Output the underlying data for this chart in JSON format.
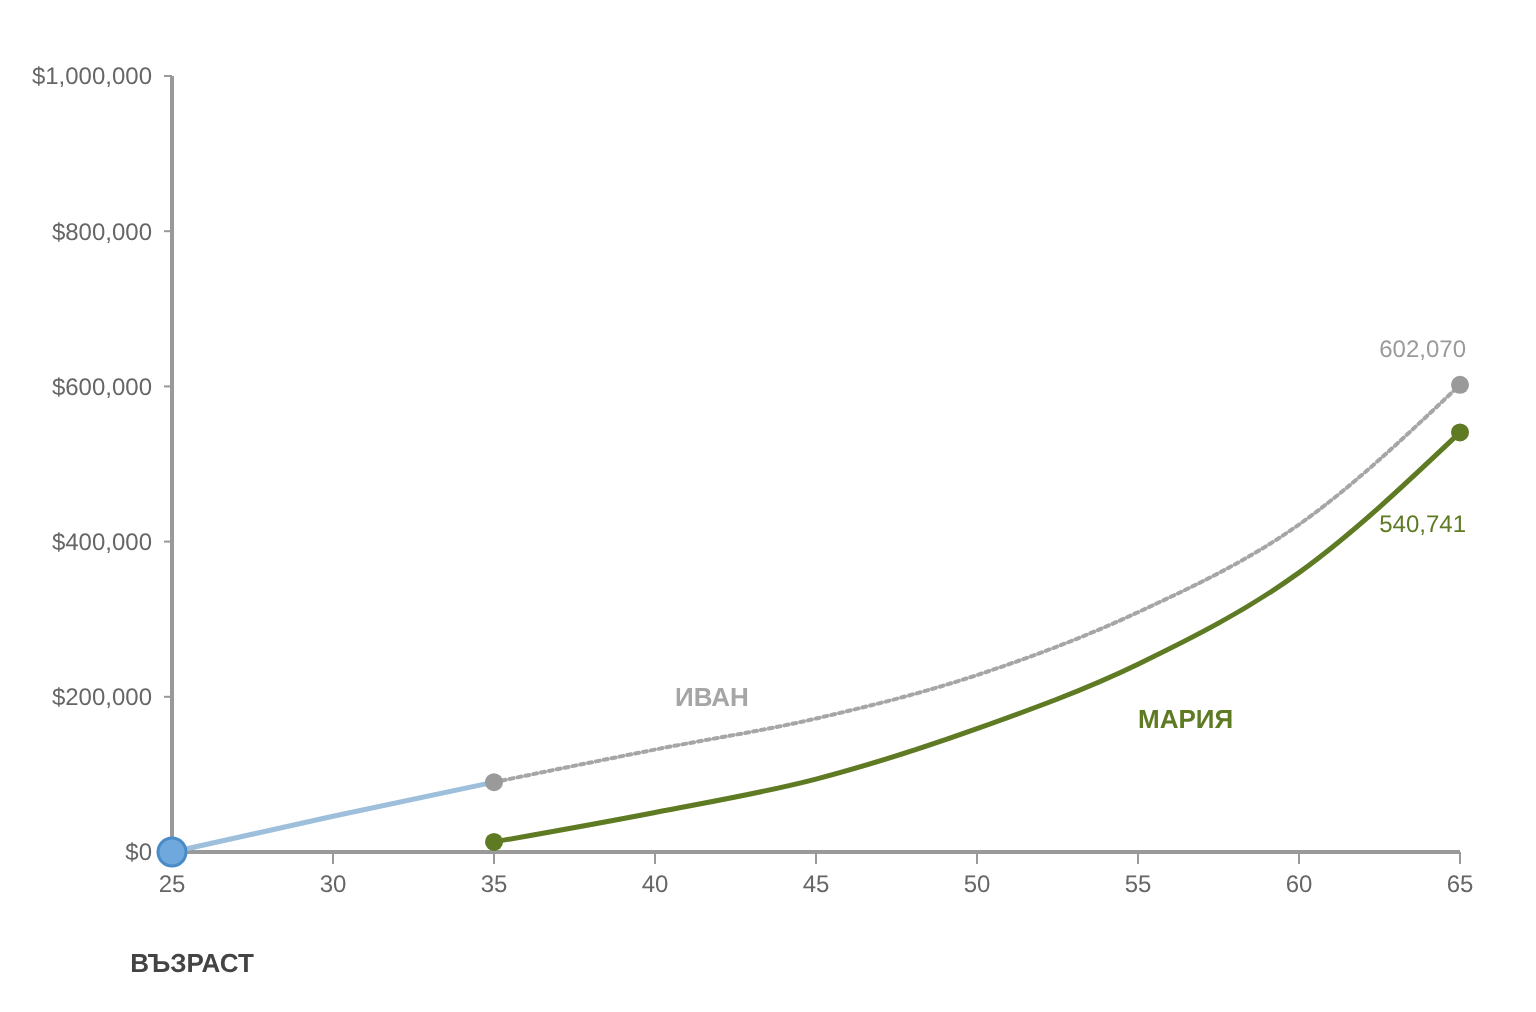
{
  "chart_data": {
    "type": "line",
    "xlabel": "ВЪЗРАСТ",
    "xlim": [
      25,
      65
    ],
    "xticks": [
      25,
      30,
      35,
      40,
      45,
      50,
      55,
      60,
      65
    ],
    "ylim": [
      0,
      1000000
    ],
    "yticks": [
      {
        "value": 0,
        "label": "$0"
      },
      {
        "value": 200000,
        "label": "$200,000"
      },
      {
        "value": 400000,
        "label": "$400,000"
      },
      {
        "value": 600000,
        "label": "$600,000"
      },
      {
        "value": 800000,
        "label": "$800,000"
      },
      {
        "value": 1000000,
        "label": "$1,000,000"
      }
    ],
    "grid": false,
    "legend": false,
    "series": [
      {
        "color": "#9dbfdc",
        "line_style": "solid",
        "x": [
          25,
          30,
          35
        ],
        "values": [
          0,
          46000,
          90000
        ]
      },
      {
        "name": "ИВАН",
        "color": "#a6a6a6",
        "line_style": "dotted",
        "x": [
          35,
          40,
          45,
          50,
          55,
          60,
          65
        ],
        "values": [
          90000,
          132000,
          172000,
          228000,
          309000,
          422000,
          602070
        ]
      },
      {
        "name": "МАРИЯ",
        "color": "#5e7a23",
        "line_style": "solid",
        "x": [
          35,
          40,
          45,
          50,
          55,
          60,
          65
        ],
        "values": [
          13000,
          51000,
          94000,
          159000,
          242000,
          360000,
          540741
        ]
      },
      {
        "type": "scatter",
        "color": "#6fa8dc",
        "marker": "circle",
        "x": [
          25
        ],
        "values": [
          0
        ]
      },
      {
        "type": "scatter",
        "color": "#9a9a9a",
        "marker": "circle",
        "x": [
          35,
          65
        ],
        "values": [
          90000,
          602070
        ],
        "value_labels": [
          null,
          "602,070"
        ]
      },
      {
        "type": "scatter",
        "color": "#5e7a23",
        "marker": "circle",
        "x": [
          35,
          65
        ],
        "values": [
          13000,
          540741
        ],
        "value_labels": [
          null,
          "540,741"
        ]
      }
    ]
  }
}
